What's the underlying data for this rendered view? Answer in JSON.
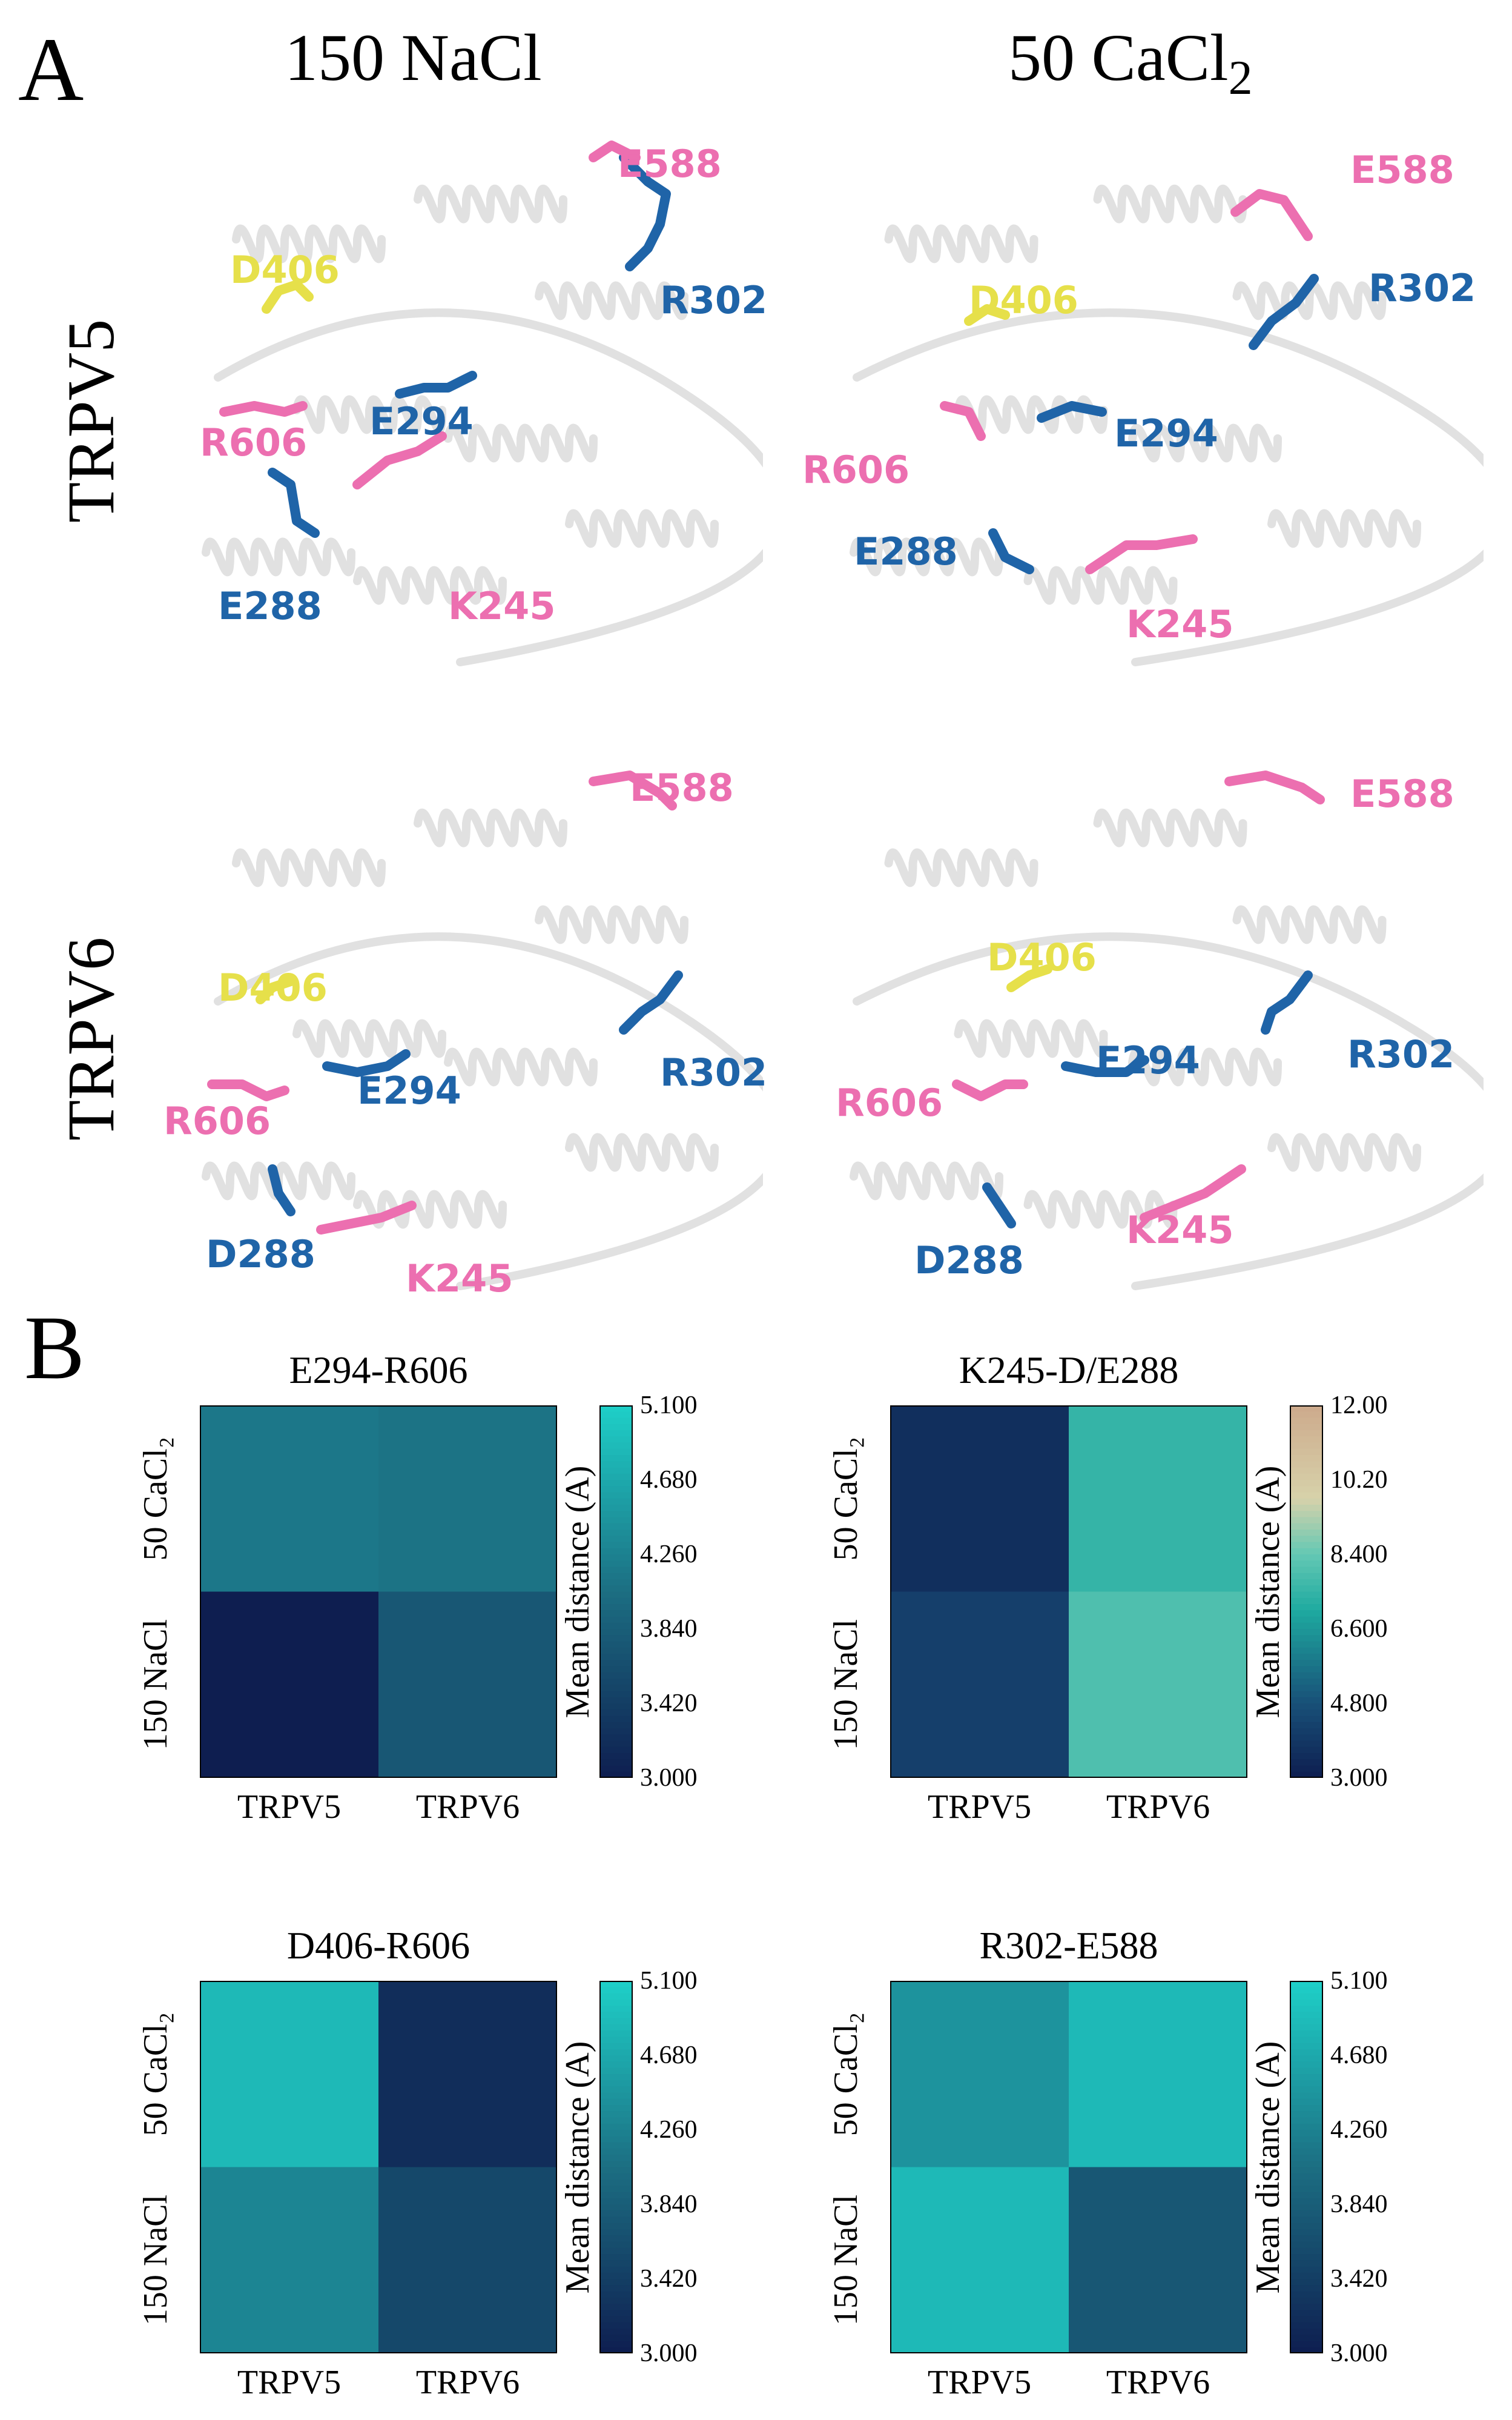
{
  "panel_a": {
    "letter": "A",
    "columns": [
      "150 NaCl",
      "50 CaCl"
    ],
    "column_sub": "2",
    "rows": [
      "TRPV5",
      "TRPV6"
    ],
    "structures": [
      {
        "labels": {
          "e588": "E588",
          "d406": "D406",
          "r302": "R302",
          "r606": "R606",
          "e294": "E294",
          "e288": "E288",
          "k245": "K245"
        }
      },
      {
        "labels": {
          "e588": "E588",
          "d406": "D406",
          "r302": "R302",
          "r606": "R606",
          "e294": "E294",
          "e288": "E288",
          "k245": "K245"
        }
      },
      {
        "labels": {
          "e588": "E588",
          "d406": "D406",
          "r302": "R302",
          "r606": "R606",
          "e294": "E294",
          "e288": "D288",
          "k245": "K245"
        }
      },
      {
        "labels": {
          "e588": "E588",
          "d406": "D406",
          "r302": "R302",
          "r606": "R606",
          "e294": "E294",
          "e288": "D288",
          "k245": "K245"
        }
      }
    ],
    "colors": {
      "pink": "#ec6fb0",
      "blue": "#1f64a8",
      "yellow": "#e6e04a"
    }
  },
  "panel_b": {
    "letter": "B"
  },
  "chart_data": [
    {
      "type": "heatmap",
      "title": "E294-R606",
      "x_categories": [
        "TRPV5",
        "TRPV6"
      ],
      "y_categories": [
        "50 CaCl₂",
        "150 NaCl"
      ],
      "values": [
        [
          4.15,
          4.1
        ],
        [
          3.0,
          3.75
        ]
      ],
      "colorbar_label": "Mean distance (A)",
      "colorbar_range": [
        3.0,
        5.1
      ],
      "colorbar_ticks": [
        "5.100",
        "4.680",
        "4.260",
        "3.840",
        "3.420",
        "3.000"
      ],
      "colormap": "teal"
    },
    {
      "type": "heatmap",
      "title": "K245-D/E288",
      "x_categories": [
        "TRPV5",
        "TRPV6"
      ],
      "y_categories": [
        "50 CaCl₂",
        "150 NaCl"
      ],
      "values": [
        [
          3.6,
          7.5
        ],
        [
          4.2,
          8.0
        ]
      ],
      "colorbar_label": "Mean distance (A)",
      "colorbar_range": [
        3.0,
        12.0
      ],
      "colorbar_ticks": [
        "12.00",
        "10.20",
        "8.400",
        "6.600",
        "4.800",
        "3.000"
      ],
      "colormap": "teal-tan"
    },
    {
      "type": "heatmap",
      "title": "D406-R606",
      "x_categories": [
        "TRPV5",
        "TRPV6"
      ],
      "y_categories": [
        "50 CaCl₂",
        "150 NaCl"
      ],
      "values": [
        [
          4.85,
          3.2
        ],
        [
          4.3,
          3.55
        ]
      ],
      "colorbar_label": "Mean distance (A)",
      "colorbar_range": [
        3.0,
        5.1
      ],
      "colorbar_ticks": [
        "5.100",
        "4.680",
        "4.260",
        "3.840",
        "3.420",
        "3.000"
      ],
      "colormap": "teal"
    },
    {
      "type": "heatmap",
      "title": "R302-E588",
      "x_categories": [
        "TRPV5",
        "TRPV6"
      ],
      "y_categories": [
        "50 CaCl₂",
        "150 NaCl"
      ],
      "values": [
        [
          4.45,
          4.85
        ],
        [
          4.85,
          3.75
        ]
      ],
      "colorbar_label": "Mean distance (A)",
      "colorbar_range": [
        3.0,
        5.1
      ],
      "colorbar_ticks": [
        "5.100",
        "4.680",
        "4.260",
        "3.840",
        "3.420",
        "3.000"
      ],
      "colormap": "teal"
    }
  ]
}
